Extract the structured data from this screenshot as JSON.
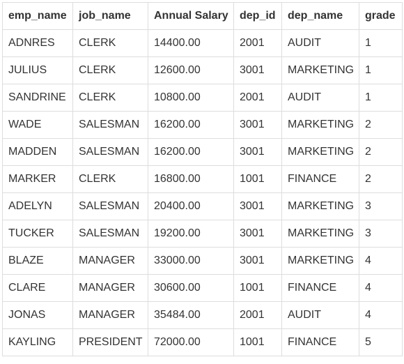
{
  "table": {
    "columns": [
      "emp_name",
      "job_name",
      "Annual Salary",
      "dep_id",
      "dep_name",
      "grade"
    ],
    "rows": [
      [
        "ADNRES",
        "CLERK",
        "14400.00",
        "2001",
        "AUDIT",
        "1"
      ],
      [
        "JULIUS",
        "CLERK",
        "12600.00",
        "3001",
        "MARKETING",
        "1"
      ],
      [
        "SANDRINE",
        "CLERK",
        "10800.00",
        "2001",
        "AUDIT",
        "1"
      ],
      [
        "WADE",
        "SALESMAN",
        "16200.00",
        "3001",
        "MARKETING",
        "2"
      ],
      [
        "MADDEN",
        "SALESMAN",
        "16200.00",
        "3001",
        "MARKETING",
        "2"
      ],
      [
        "MARKER",
        "CLERK",
        "16800.00",
        "1001",
        "FINANCE",
        "2"
      ],
      [
        "ADELYN",
        "SALESMAN",
        "20400.00",
        "3001",
        "MARKETING",
        "3"
      ],
      [
        "TUCKER",
        "SALESMAN",
        "19200.00",
        "3001",
        "MARKETING",
        "3"
      ],
      [
        "BLAZE",
        "MANAGER",
        "33000.00",
        "3001",
        "MARKETING",
        "4"
      ],
      [
        "CLARE",
        "MANAGER",
        "30600.00",
        "1001",
        "FINANCE",
        "4"
      ],
      [
        "JONAS",
        "MANAGER",
        "35484.00",
        "2001",
        "AUDIT",
        "4"
      ],
      [
        "KAYLING",
        "PRESIDENT",
        "72000.00",
        "1001",
        "FINANCE",
        "5"
      ]
    ]
  },
  "colors": {
    "border": "#dddddd",
    "text": "#333333",
    "background": "#ffffff"
  }
}
